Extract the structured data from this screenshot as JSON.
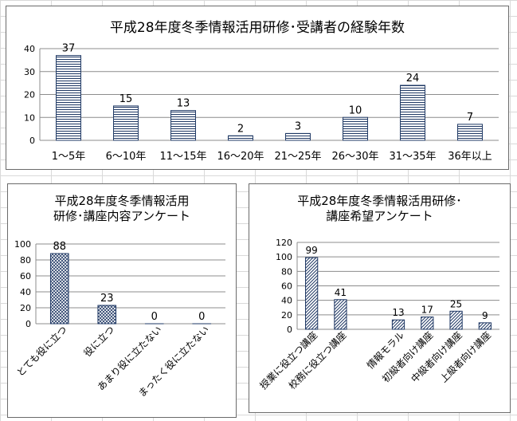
{
  "chart_data": [
    {
      "type": "bar",
      "title": "平成28年度冬季情報活用研修･受講者の経験年数",
      "categories": [
        "1～5年",
        "6～10年",
        "11～15年",
        "16～20年",
        "21～25年",
        "26～30年",
        "31～35年",
        "36年以上"
      ],
      "values": [
        37,
        15,
        13,
        2,
        3,
        10,
        24,
        7
      ],
      "yticks": [
        "0",
        "10",
        "20",
        "30",
        "40"
      ],
      "ylim": [
        0,
        40
      ],
      "grid": true,
      "bar_pattern": "horizontal-stripes"
    },
    {
      "type": "bar",
      "title_lines": [
        "平成28年度冬季情報活用",
        "研修･講座内容アンケート"
      ],
      "categories": [
        "とても役に立つ",
        "役に立つ",
        "あまり役に立たない",
        "まったく役に立たない"
      ],
      "values": [
        88,
        23,
        0,
        0
      ],
      "yticks": [
        "0",
        "20",
        "40",
        "60",
        "80",
        "100"
      ],
      "ylim": [
        0,
        100
      ],
      "grid": true,
      "bar_pattern": "diagonal-crosshatch"
    },
    {
      "type": "bar",
      "title_lines": [
        "平成28年度冬季情報活用研修･",
        "講座希望アンケート"
      ],
      "categories": [
        "授業に役立つ講座",
        "校務に役立つ講座",
        "",
        "情報モラル",
        "初級者向け講座",
        "中級者向け講座",
        "上級者向け講座"
      ],
      "values": [
        99,
        41,
        null,
        13,
        17,
        25,
        9
      ],
      "yticks": [
        "0",
        "20",
        "40",
        "60",
        "80",
        "100",
        "120"
      ],
      "ylim": [
        0,
        120
      ],
      "grid": true,
      "bar_pattern": "diagonal-stripes"
    }
  ]
}
